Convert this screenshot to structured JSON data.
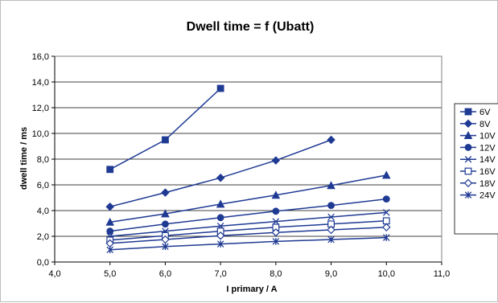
{
  "chart_data": {
    "type": "line",
    "title": "Dwell time = f (Ubatt)",
    "xlabel": "I primary / A",
    "ylabel": "dwell time / ms",
    "xlim": [
      4.0,
      11.0
    ],
    "ylim": [
      0.0,
      16.0
    ],
    "x_ticks": [
      "4,0",
      "5,0",
      "6,0",
      "7,0",
      "8,0",
      "9,0",
      "10,0",
      "11,0"
    ],
    "y_ticks": [
      "0,0",
      "2,0",
      "4,0",
      "6,0",
      "8,0",
      "10,0",
      "12,0",
      "14,0",
      "16,0"
    ],
    "grid": "horizontal",
    "legend_position": "right",
    "line_color": "#1f3a93",
    "series": [
      {
        "name": "6V",
        "marker": "square-filled",
        "points": [
          [
            5,
            7.2
          ],
          [
            6,
            9.5
          ],
          [
            7,
            13.5
          ]
        ]
      },
      {
        "name": "8V",
        "marker": "diamond-filled",
        "points": [
          [
            5,
            4.3
          ],
          [
            6,
            5.4
          ],
          [
            7,
            6.55
          ],
          [
            8,
            7.9
          ],
          [
            9,
            9.5
          ]
        ]
      },
      {
        "name": "10V",
        "marker": "triangle-filled",
        "points": [
          [
            5,
            3.1
          ],
          [
            6,
            3.75
          ],
          [
            7,
            4.5
          ],
          [
            8,
            5.2
          ],
          [
            9,
            5.95
          ],
          [
            10,
            6.75
          ]
        ]
      },
      {
        "name": "12V",
        "marker": "circle-filled",
        "points": [
          [
            5,
            2.4
          ],
          [
            6,
            2.95
          ],
          [
            7,
            3.45
          ],
          [
            8,
            3.95
          ],
          [
            9,
            4.4
          ],
          [
            10,
            4.9
          ]
        ]
      },
      {
        "name": "14V",
        "marker": "x",
        "points": [
          [
            5,
            2.0
          ],
          [
            6,
            2.4
          ],
          [
            7,
            2.8
          ],
          [
            8,
            3.15
          ],
          [
            9,
            3.5
          ],
          [
            10,
            3.85
          ]
        ]
      },
      {
        "name": "16V",
        "marker": "square-open",
        "points": [
          [
            5,
            1.7
          ],
          [
            6,
            2.05
          ],
          [
            7,
            2.4
          ],
          [
            8,
            2.7
          ],
          [
            9,
            2.95
          ],
          [
            10,
            3.2
          ]
        ]
      },
      {
        "name": "18V",
        "marker": "diamond-open",
        "points": [
          [
            5,
            1.45
          ],
          [
            6,
            1.75
          ],
          [
            7,
            2.05
          ],
          [
            8,
            2.3
          ],
          [
            9,
            2.5
          ],
          [
            10,
            2.7
          ]
        ]
      },
      {
        "name": "24V",
        "marker": "asterisk",
        "points": [
          [
            5,
            0.95
          ],
          [
            6,
            1.2
          ],
          [
            7,
            1.4
          ],
          [
            8,
            1.6
          ],
          [
            9,
            1.75
          ],
          [
            10,
            1.9
          ]
        ]
      }
    ]
  }
}
